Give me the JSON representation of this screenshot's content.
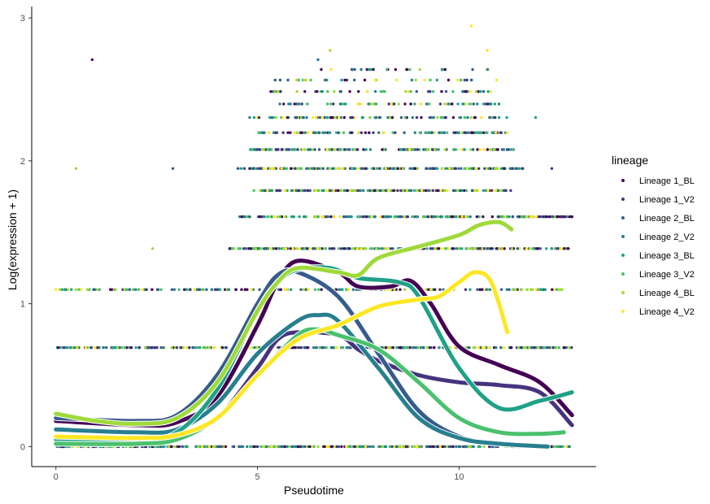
{
  "chart_data": {
    "type": "line",
    "xlabel": "Pseudotime",
    "ylabel": "Log(expression + 1)",
    "xlim": [
      -0.6,
      13.4
    ],
    "ylim": [
      -0.14,
      3.08
    ],
    "x_ticks": [
      0,
      5,
      10
    ],
    "y_ticks": [
      0,
      1,
      2,
      3
    ],
    "legend": {
      "title": "lineage",
      "position": "right"
    },
    "series": [
      {
        "name": "Lineage 1_BL",
        "color": "#440154",
        "curve": [
          [
            0,
            0.18
          ],
          [
            2,
            0.15
          ],
          [
            3,
            0.17
          ],
          [
            4,
            0.35
          ],
          [
            5,
            0.85
          ],
          [
            5.5,
            1.15
          ],
          [
            6,
            1.3
          ],
          [
            7,
            1.22
          ],
          [
            7.5,
            1.12
          ],
          [
            8.3,
            1.12
          ],
          [
            8.8,
            1.16
          ],
          [
            9.3,
            1.0
          ],
          [
            10,
            0.7
          ],
          [
            11,
            0.57
          ],
          [
            12,
            0.45
          ],
          [
            12.8,
            0.22
          ]
        ]
      },
      {
        "name": "Lineage 1_V2",
        "color": "#46337E",
        "curve": [
          [
            0,
            0.02
          ],
          [
            2,
            0.02
          ],
          [
            3,
            0.05
          ],
          [
            4,
            0.2
          ],
          [
            5,
            0.55
          ],
          [
            5.5,
            0.75
          ],
          [
            6,
            0.8
          ],
          [
            7,
            0.78
          ],
          [
            7.5,
            0.68
          ],
          [
            8,
            0.6
          ],
          [
            9,
            0.5
          ],
          [
            10,
            0.45
          ],
          [
            11,
            0.43
          ],
          [
            12,
            0.38
          ],
          [
            12.8,
            0.15
          ]
        ]
      },
      {
        "name": "Lineage 2_BL",
        "color": "#365C8D",
        "curve": [
          [
            0,
            0.2
          ],
          [
            2,
            0.18
          ],
          [
            3,
            0.22
          ],
          [
            4,
            0.5
          ],
          [
            5,
            1.0
          ],
          [
            5.5,
            1.2
          ],
          [
            6,
            1.22
          ],
          [
            7,
            1.05
          ],
          [
            8,
            0.65
          ],
          [
            9,
            0.25
          ],
          [
            10,
            0.07
          ],
          [
            11,
            0.02
          ],
          [
            11.6,
            0.01
          ]
        ]
      },
      {
        "name": "Lineage 2_V2",
        "color": "#277F8E",
        "curve": [
          [
            0,
            0.12
          ],
          [
            2,
            0.1
          ],
          [
            3,
            0.12
          ],
          [
            4,
            0.3
          ],
          [
            5,
            0.65
          ],
          [
            6,
            0.88
          ],
          [
            6.5,
            0.92
          ],
          [
            7,
            0.88
          ],
          [
            8,
            0.55
          ],
          [
            9,
            0.2
          ],
          [
            10,
            0.06
          ],
          [
            11,
            0.02
          ],
          [
            12.2,
            0.0
          ]
        ]
      },
      {
        "name": "Lineage 3_BL",
        "color": "#1FA187",
        "curve": [
          [
            0,
            0.05
          ],
          [
            2,
            0.05
          ],
          [
            3,
            0.1
          ],
          [
            4,
            0.4
          ],
          [
            5,
            0.95
          ],
          [
            5.5,
            1.15
          ],
          [
            6,
            1.24
          ],
          [
            6.8,
            1.25
          ],
          [
            7.5,
            1.18
          ],
          [
            8.5,
            1.15
          ],
          [
            9,
            1.05
          ],
          [
            10,
            0.55
          ],
          [
            11,
            0.27
          ],
          [
            12,
            0.32
          ],
          [
            12.8,
            0.38
          ]
        ]
      },
      {
        "name": "Lineage 3_V2",
        "color": "#4AC16D",
        "curve": [
          [
            0,
            0.02
          ],
          [
            2,
            0.02
          ],
          [
            3,
            0.05
          ],
          [
            4,
            0.2
          ],
          [
            5,
            0.5
          ],
          [
            6,
            0.78
          ],
          [
            6.5,
            0.82
          ],
          [
            7,
            0.78
          ],
          [
            8,
            0.68
          ],
          [
            9,
            0.45
          ],
          [
            10,
            0.2
          ],
          [
            11,
            0.1
          ],
          [
            12,
            0.09
          ],
          [
            12.6,
            0.1
          ]
        ]
      },
      {
        "name": "Lineage 4_BL",
        "color": "#9FDA3A",
        "curve": [
          [
            0,
            0.23
          ],
          [
            1,
            0.18
          ],
          [
            2,
            0.16
          ],
          [
            3,
            0.2
          ],
          [
            4,
            0.45
          ],
          [
            5,
            0.95
          ],
          [
            5.5,
            1.15
          ],
          [
            6,
            1.25
          ],
          [
            7,
            1.22
          ],
          [
            7.5,
            1.2
          ],
          [
            8,
            1.32
          ],
          [
            9,
            1.4
          ],
          [
            10,
            1.48
          ],
          [
            10.5,
            1.55
          ],
          [
            11,
            1.57
          ],
          [
            11.3,
            1.52
          ]
        ]
      },
      {
        "name": "Lineage 4_V2",
        "color": "#FDE725",
        "curve": [
          [
            0,
            0.07
          ],
          [
            2,
            0.06
          ],
          [
            3,
            0.08
          ],
          [
            4,
            0.2
          ],
          [
            5,
            0.5
          ],
          [
            6,
            0.75
          ],
          [
            7,
            0.85
          ],
          [
            8,
            0.98
          ],
          [
            9,
            1.03
          ],
          [
            9.5,
            1.05
          ],
          [
            10,
            1.15
          ],
          [
            10.4,
            1.22
          ],
          [
            10.8,
            1.15
          ],
          [
            11.2,
            0.8
          ]
        ]
      }
    ],
    "points": {
      "levels": [
        0,
        0.693,
        1.099,
        1.386,
        1.609,
        1.792,
        1.946,
        2.079,
        2.197,
        2.303,
        2.398,
        2.485,
        2.565,
        2.639,
        2.708
      ],
      "bands": [
        {
          "y": 0,
          "x": [
            0,
            12.8
          ],
          "n": 420
        },
        {
          "y": 0.693,
          "x": [
            0,
            12.8
          ],
          "n": 340
        },
        {
          "y": 1.099,
          "x": [
            0,
            12.8
          ],
          "n": 180
        },
        {
          "y": 1.386,
          "x": [
            4.3,
            12.8
          ],
          "n": 260
        },
        {
          "y": 1.609,
          "x": [
            4.5,
            12.8
          ],
          "n": 230
        },
        {
          "y": 1.792,
          "x": [
            4.9,
            11.3
          ],
          "n": 220
        },
        {
          "y": 1.946,
          "x": [
            4.5,
            11.6
          ],
          "n": 210
        },
        {
          "y": 2.079,
          "x": [
            4.8,
            11.4
          ],
          "n": 150
        },
        {
          "y": 2.197,
          "x": [
            5.0,
            11.2
          ],
          "n": 120
        },
        {
          "y": 2.303,
          "x": [
            4.8,
            11.2
          ],
          "n": 100
        },
        {
          "y": 2.398,
          "x": [
            5.5,
            11.0
          ],
          "n": 75
        },
        {
          "y": 2.485,
          "x": [
            5.2,
            11.0
          ],
          "n": 50
        },
        {
          "y": 2.565,
          "x": [
            5.4,
            11.0
          ],
          "n": 35
        },
        {
          "y": 2.639,
          "x": [
            6.5,
            10.8
          ],
          "n": 25
        }
      ],
      "extras": [
        {
          "x": 0.9,
          "y": 2.708,
          "series": 0
        },
        {
          "x": 0.5,
          "y": 1.946,
          "series": 6
        },
        {
          "x": 2.9,
          "y": 1.946,
          "series": 2
        },
        {
          "x": 2.4,
          "y": 1.386,
          "series": 6
        },
        {
          "x": 10.3,
          "y": 2.944,
          "series": 7
        },
        {
          "x": 10.7,
          "y": 2.773,
          "series": 7
        },
        {
          "x": 6.8,
          "y": 2.773,
          "series": 6
        },
        {
          "x": 6.5,
          "y": 2.708,
          "series": 3
        },
        {
          "x": 11.9,
          "y": 2.303,
          "series": 4
        },
        {
          "x": 12.3,
          "y": 1.946,
          "series": 1
        },
        {
          "x": 12.8,
          "y": 1.609,
          "series": 0
        },
        {
          "x": 0.0,
          "y": 1.099,
          "series": 7
        },
        {
          "x": 0.1,
          "y": 1.099,
          "series": 6
        }
      ]
    }
  }
}
